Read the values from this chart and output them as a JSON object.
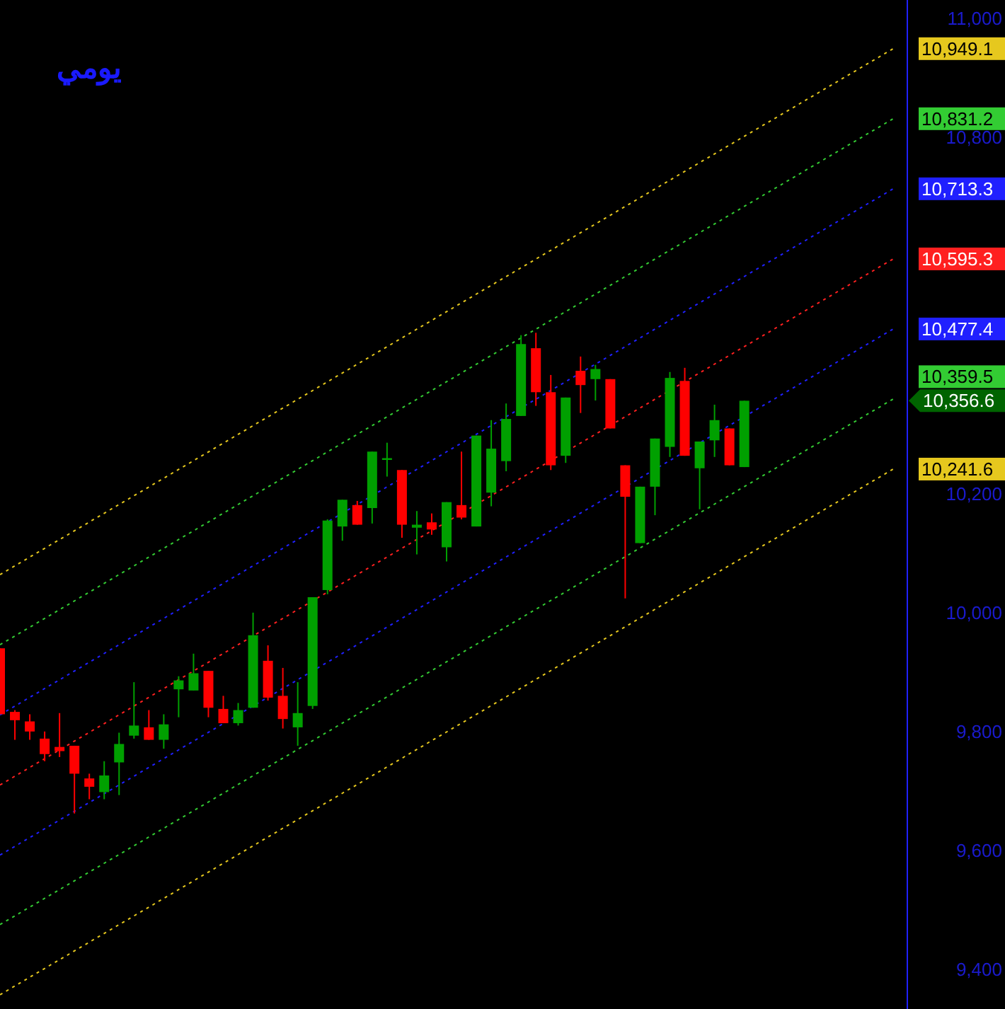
{
  "chart_data": {
    "type": "candlestick",
    "title": "يومي",
    "categories": [
      null,
      null,
      null,
      null,
      null,
      null,
      null,
      null,
      null,
      null,
      null,
      null,
      null,
      null,
      null,
      null,
      null,
      null,
      null,
      null,
      null,
      null,
      null,
      null,
      null,
      null,
      null,
      null,
      null,
      null,
      null,
      null,
      null,
      null,
      null,
      null,
      null,
      null,
      null,
      null,
      null,
      null,
      null,
      null,
      null,
      null,
      null,
      null,
      null,
      null,
      null,
      null,
      null,
      null,
      null,
      null,
      null,
      null,
      null,
      null,
      null
    ],
    "ohlc": [
      [
        9940,
        9940,
        9829,
        9829
      ],
      [
        9833,
        9836,
        9786,
        9819
      ],
      [
        9817,
        9829,
        9786,
        9800
      ],
      [
        9788,
        9800,
        9750,
        9762
      ],
      [
        9774,
        9831,
        9757,
        9767
      ],
      [
        9776,
        9776,
        9662,
        9729
      ],
      [
        9721,
        9729,
        9686,
        9707
      ],
      [
        9698,
        9750,
        9686,
        9726
      ],
      [
        9748,
        9798,
        9693,
        9779
      ],
      [
        9793,
        9883,
        9788,
        9810
      ],
      [
        9807,
        9836,
        9786,
        9786
      ],
      [
        9786,
        9829,
        9771,
        9812
      ],
      [
        9871,
        9893,
        9824,
        9886
      ],
      [
        9869,
        9931,
        9869,
        9898
      ],
      [
        9902,
        9902,
        9824,
        9840
      ],
      [
        9838,
        9860,
        9814,
        9814
      ],
      [
        9814,
        9848,
        9810,
        9836
      ],
      [
        9840,
        10000,
        9840,
        9962
      ],
      [
        9919,
        9945,
        9852,
        9857
      ],
      [
        9860,
        9907,
        9805,
        9821
      ],
      [
        9807,
        9883,
        9776,
        9831
      ],
      [
        9843,
        10026,
        9838,
        10026
      ],
      [
        10038,
        10157,
        10031,
        10155
      ],
      [
        10145,
        10190,
        10121,
        10190
      ],
      [
        10181,
        10188,
        10148,
        10148
      ],
      [
        10176,
        10271,
        10150,
        10271
      ],
      [
        10257,
        10286,
        10229,
        10260
      ],
      [
        10240,
        10240,
        10126,
        10148
      ],
      [
        10143,
        10171,
        10098,
        10148
      ],
      [
        10152,
        10167,
        10131,
        10140
      ],
      [
        10110,
        10186,
        10086,
        10186
      ],
      [
        10181,
        10271,
        10157,
        10160
      ],
      [
        10145,
        10298,
        10145,
        10298
      ],
      [
        10202,
        10324,
        10179,
        10276
      ],
      [
        10255,
        10352,
        10238,
        10326
      ],
      [
        10331,
        10467,
        10331,
        10452
      ],
      [
        10445,
        10471,
        10348,
        10371
      ],
      [
        10371,
        10400,
        10240,
        10248
      ],
      [
        10264,
        10362,
        10252,
        10362
      ],
      [
        10407,
        10431,
        10336,
        10383
      ],
      [
        10393,
        10417,
        10357,
        10410
      ],
      [
        10393,
        10393,
        10310,
        10310
      ],
      [
        10248,
        10248,
        10024,
        10195
      ],
      [
        10117,
        10212,
        10117,
        10212
      ],
      [
        10212,
        10293,
        10164,
        10293
      ],
      [
        10279,
        10405,
        10262,
        10395
      ],
      [
        10390,
        10412,
        10264,
        10264
      ],
      [
        10243,
        10288,
        10174,
        10288
      ],
      [
        10290,
        10350,
        10262,
        10324
      ],
      [
        10310,
        10310,
        10248,
        10248
      ],
      [
        10245,
        10356.6,
        10245,
        10356.6
      ],
      null,
      null,
      null,
      null,
      null,
      null,
      null,
      null,
      null,
      null
    ],
    "series": [
      {
        "type": "line",
        "color": "#e6c81e",
        "line_style": "dotted",
        "values": [
          10064,
          null,
          null,
          null,
          null,
          null,
          null,
          null,
          null,
          null,
          null,
          null,
          null,
          null,
          null,
          null,
          null,
          null,
          null,
          null,
          null,
          null,
          null,
          null,
          null,
          null,
          null,
          null,
          null,
          null,
          null,
          null,
          null,
          null,
          null,
          null,
          null,
          null,
          null,
          null,
          null,
          null,
          null,
          null,
          null,
          null,
          null,
          null,
          null,
          null,
          null,
          null,
          null,
          null,
          null,
          null,
          null,
          null,
          null,
          null,
          10949.1
        ],
        "value_labels": [
          null,
          null,
          null,
          null,
          null,
          null,
          null,
          null,
          null,
          null,
          null,
          null,
          null,
          null,
          null,
          null,
          null,
          null,
          null,
          null,
          null,
          null,
          null,
          null,
          null,
          null,
          null,
          null,
          null,
          null,
          null,
          null,
          null,
          null,
          null,
          null,
          null,
          null,
          null,
          null,
          null,
          null,
          null,
          null,
          null,
          null,
          null,
          null,
          null,
          null,
          null,
          null,
          null,
          null,
          null,
          null,
          null,
          null,
          null,
          null,
          "10,949.1"
        ]
      },
      {
        "type": "line",
        "color": "#33cc33",
        "line_style": "dotted",
        "values": [
          9946,
          null,
          null,
          null,
          null,
          null,
          null,
          null,
          null,
          null,
          null,
          null,
          null,
          null,
          null,
          null,
          null,
          null,
          null,
          null,
          null,
          null,
          null,
          null,
          null,
          null,
          null,
          null,
          null,
          null,
          null,
          null,
          null,
          null,
          null,
          null,
          null,
          null,
          null,
          null,
          null,
          null,
          null,
          null,
          null,
          null,
          null,
          null,
          null,
          null,
          null,
          null,
          null,
          null,
          null,
          null,
          null,
          null,
          null,
          null,
          10831.2
        ],
        "value_labels": [
          null,
          null,
          null,
          null,
          null,
          null,
          null,
          null,
          null,
          null,
          null,
          null,
          null,
          null,
          null,
          null,
          null,
          null,
          null,
          null,
          null,
          null,
          null,
          null,
          null,
          null,
          null,
          null,
          null,
          null,
          null,
          null,
          null,
          null,
          null,
          null,
          null,
          null,
          null,
          null,
          null,
          null,
          null,
          null,
          null,
          null,
          null,
          null,
          null,
          null,
          null,
          null,
          null,
          null,
          null,
          null,
          null,
          null,
          null,
          null,
          "10,831.2"
        ]
      },
      {
        "type": "line",
        "color": "#2020ff",
        "line_style": "dotted",
        "values": [
          9828,
          null,
          null,
          null,
          null,
          null,
          null,
          null,
          null,
          null,
          null,
          null,
          null,
          null,
          null,
          null,
          null,
          null,
          null,
          null,
          null,
          null,
          null,
          null,
          null,
          null,
          null,
          null,
          null,
          null,
          null,
          null,
          null,
          null,
          null,
          null,
          null,
          null,
          null,
          null,
          null,
          null,
          null,
          null,
          null,
          null,
          null,
          null,
          null,
          null,
          null,
          null,
          null,
          null,
          null,
          null,
          null,
          null,
          null,
          null,
          10713.3
        ],
        "value_labels": [
          null,
          null,
          null,
          null,
          null,
          null,
          null,
          null,
          null,
          null,
          null,
          null,
          null,
          null,
          null,
          null,
          null,
          null,
          null,
          null,
          null,
          null,
          null,
          null,
          null,
          null,
          null,
          null,
          null,
          null,
          null,
          null,
          null,
          null,
          null,
          null,
          null,
          null,
          null,
          null,
          null,
          null,
          null,
          null,
          null,
          null,
          null,
          null,
          null,
          null,
          null,
          null,
          null,
          null,
          null,
          null,
          null,
          null,
          null,
          null,
          "10,713.3"
        ]
      },
      {
        "type": "line",
        "color": "#ff2020",
        "line_style": "dotted",
        "values": [
          9710,
          null,
          null,
          null,
          null,
          null,
          null,
          null,
          null,
          null,
          null,
          null,
          null,
          null,
          null,
          null,
          null,
          null,
          null,
          null,
          null,
          null,
          null,
          null,
          null,
          null,
          null,
          null,
          null,
          null,
          null,
          null,
          null,
          null,
          null,
          null,
          null,
          null,
          null,
          null,
          null,
          null,
          null,
          null,
          null,
          null,
          null,
          null,
          null,
          null,
          null,
          null,
          null,
          null,
          null,
          null,
          null,
          null,
          null,
          null,
          10595.3
        ],
        "value_labels": [
          null,
          null,
          null,
          null,
          null,
          null,
          null,
          null,
          null,
          null,
          null,
          null,
          null,
          null,
          null,
          null,
          null,
          null,
          null,
          null,
          null,
          null,
          null,
          null,
          null,
          null,
          null,
          null,
          null,
          null,
          null,
          null,
          null,
          null,
          null,
          null,
          null,
          null,
          null,
          null,
          null,
          null,
          null,
          null,
          null,
          null,
          null,
          null,
          null,
          null,
          null,
          null,
          null,
          null,
          null,
          null,
          null,
          null,
          null,
          null,
          "10,595.3"
        ]
      },
      {
        "type": "line",
        "color": "#2020ff",
        "line_style": "dotted",
        "values": [
          9592,
          null,
          null,
          null,
          null,
          null,
          null,
          null,
          null,
          null,
          null,
          null,
          null,
          null,
          null,
          null,
          null,
          null,
          null,
          null,
          null,
          null,
          null,
          null,
          null,
          null,
          null,
          null,
          null,
          null,
          null,
          null,
          null,
          null,
          null,
          null,
          null,
          null,
          null,
          null,
          null,
          null,
          null,
          null,
          null,
          null,
          null,
          null,
          null,
          null,
          null,
          null,
          null,
          null,
          null,
          null,
          null,
          null,
          null,
          null,
          10477.4
        ],
        "value_labels": [
          null,
          null,
          null,
          null,
          null,
          null,
          null,
          null,
          null,
          null,
          null,
          null,
          null,
          null,
          null,
          null,
          null,
          null,
          null,
          null,
          null,
          null,
          null,
          null,
          null,
          null,
          null,
          null,
          null,
          null,
          null,
          null,
          null,
          null,
          null,
          null,
          null,
          null,
          null,
          null,
          null,
          null,
          null,
          null,
          null,
          null,
          null,
          null,
          null,
          null,
          null,
          null,
          null,
          null,
          null,
          null,
          null,
          null,
          null,
          null,
          "10,477.4"
        ]
      },
      {
        "type": "line",
        "color": "#33cc33",
        "line_style": "dotted",
        "values": [
          9475,
          null,
          null,
          null,
          null,
          null,
          null,
          null,
          null,
          null,
          null,
          null,
          null,
          null,
          null,
          null,
          null,
          null,
          null,
          null,
          null,
          null,
          null,
          null,
          null,
          null,
          null,
          null,
          null,
          null,
          null,
          null,
          null,
          null,
          null,
          null,
          null,
          null,
          null,
          null,
          null,
          null,
          null,
          null,
          null,
          null,
          null,
          null,
          null,
          null,
          null,
          null,
          null,
          null,
          null,
          null,
          null,
          null,
          null,
          null,
          10359.5
        ],
        "value_labels": [
          null,
          null,
          null,
          null,
          null,
          null,
          null,
          null,
          null,
          null,
          null,
          null,
          null,
          null,
          null,
          null,
          null,
          null,
          null,
          null,
          null,
          null,
          null,
          null,
          null,
          null,
          null,
          null,
          null,
          null,
          null,
          null,
          null,
          null,
          null,
          null,
          null,
          null,
          null,
          null,
          null,
          null,
          null,
          null,
          null,
          null,
          null,
          null,
          null,
          null,
          null,
          null,
          null,
          null,
          null,
          null,
          null,
          null,
          null,
          null,
          "10,359.5"
        ]
      },
      {
        "type": "line",
        "color": "#e6c81e",
        "line_style": "dotted",
        "values": [
          9357,
          null,
          null,
          null,
          null,
          null,
          null,
          null,
          null,
          null,
          null,
          null,
          null,
          null,
          null,
          null,
          null,
          null,
          null,
          null,
          null,
          null,
          null,
          null,
          null,
          null,
          null,
          null,
          null,
          null,
          null,
          null,
          null,
          null,
          null,
          null,
          null,
          null,
          null,
          null,
          null,
          null,
          null,
          null,
          null,
          null,
          null,
          null,
          null,
          null,
          null,
          null,
          null,
          null,
          null,
          null,
          null,
          null,
          null,
          null,
          10241.6
        ],
        "value_labels": [
          null,
          null,
          null,
          null,
          null,
          null,
          null,
          null,
          null,
          null,
          null,
          null,
          null,
          null,
          null,
          null,
          null,
          null,
          null,
          null,
          null,
          null,
          null,
          null,
          null,
          null,
          null,
          null,
          null,
          null,
          null,
          null,
          null,
          null,
          null,
          null,
          null,
          null,
          null,
          null,
          null,
          null,
          null,
          null,
          null,
          null,
          null,
          null,
          null,
          null,
          null,
          null,
          null,
          null,
          null,
          null,
          null,
          null,
          null,
          null,
          "10,241.6"
        ]
      }
    ],
    "annotations": [
      "10,356.6"
    ],
    "ylim": [
      9333,
      11031
    ],
    "yticks": [
      {
        "value": 9400,
        "label": "9,400"
      },
      {
        "value": 9600,
        "label": "9,600"
      },
      {
        "value": 9800,
        "label": "9,800"
      },
      {
        "value": 10000,
        "label": "10,000"
      },
      {
        "value": 10200,
        "label": "10,200"
      },
      {
        "value": 10800,
        "label": "10,800"
      },
      {
        "value": 11000,
        "label": "11,000"
      }
    ],
    "tick_labels": "y",
    "grid": false
  }
}
